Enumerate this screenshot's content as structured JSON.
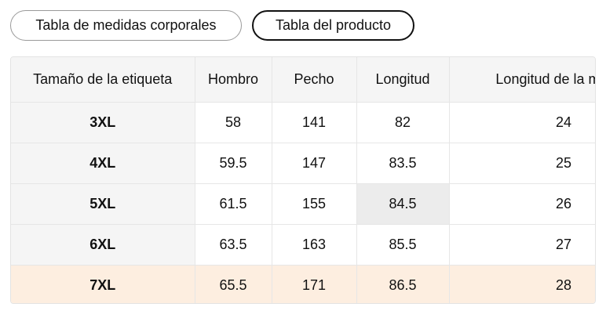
{
  "tabs": [
    {
      "label": "Tabla de medidas corporales",
      "active": false
    },
    {
      "label": "Tabla del producto",
      "active": true
    }
  ],
  "table": {
    "headers": [
      "Tamaño de la etiqueta",
      "Hombro",
      "Pecho",
      "Longitud",
      "Longitud de la manga"
    ],
    "rows": [
      [
        "3XL",
        "58",
        "141",
        "82",
        "24"
      ],
      [
        "4XL",
        "59.5",
        "147",
        "83.5",
        "25"
      ],
      [
        "5XL",
        "61.5",
        "155",
        "84.5",
        "26"
      ],
      [
        "6XL",
        "63.5",
        "163",
        "85.5",
        "27"
      ],
      [
        "7XL",
        "65.5",
        "171",
        "86.5",
        "28"
      ]
    ]
  },
  "colors": {
    "header_bg": "#f5f5f5",
    "selected_row_bg": "#fdeee0",
    "hover_cell_bg": "#ececec"
  }
}
